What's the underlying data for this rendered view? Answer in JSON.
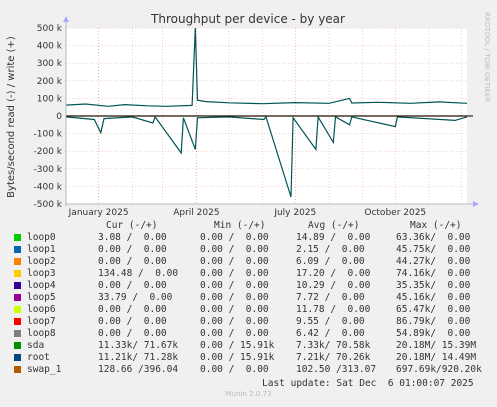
{
  "chart_data": {
    "type": "line",
    "title": "Throughput per device - by year",
    "ylabel": "Bytes/second read (-) / write (+)",
    "ylim": [
      -500000,
      500000
    ],
    "yticks": [
      -500000,
      -400000,
      -300000,
      -200000,
      -100000,
      0,
      100000,
      200000,
      300000,
      400000,
      500000
    ],
    "ytick_labels": [
      "-500 k",
      "-400 k",
      "-300 k",
      "-200 k",
      "-100 k",
      "0",
      "100 k",
      "200 k",
      "300 k",
      "400 k",
      "500 k"
    ],
    "xlim": [
      "2024-12-02",
      "2025-12-06"
    ],
    "xticks": [
      "2025-01-01",
      "2025-04-01",
      "2025-07-01",
      "2025-10-01"
    ],
    "xtick_labels": [
      "January 2025",
      "April 2025",
      "July 2025",
      "October 2025"
    ],
    "grid": true,
    "series_root_write": [
      [
        "2024-12-02",
        62000
      ],
      [
        "2024-12-20",
        68000
      ],
      [
        "2025-01-10",
        55000
      ],
      [
        "2025-01-25",
        65000
      ],
      [
        "2025-02-15",
        58000
      ],
      [
        "2025-03-05",
        55000
      ],
      [
        "2025-03-28",
        60000
      ],
      [
        "2025-03-31",
        500000
      ],
      [
        "2025-04-02",
        90000
      ],
      [
        "2025-04-10",
        82000
      ],
      [
        "2025-05-01",
        75000
      ],
      [
        "2025-06-01",
        70000
      ],
      [
        "2025-07-01",
        76000
      ],
      [
        "2025-08-01",
        72000
      ],
      [
        "2025-08-20",
        100000
      ],
      [
        "2025-08-22",
        74000
      ],
      [
        "2025-09-15",
        78000
      ],
      [
        "2025-10-15",
        72000
      ],
      [
        "2025-11-10",
        80000
      ],
      [
        "2025-12-06",
        72000
      ]
    ],
    "series_root_read": [
      [
        "2024-12-02",
        -5000
      ],
      [
        "2024-12-28",
        -20000
      ],
      [
        "2025-01-03",
        -95000
      ],
      [
        "2025-01-06",
        -15000
      ],
      [
        "2025-02-01",
        -5000
      ],
      [
        "2025-02-20",
        -40000
      ],
      [
        "2025-02-22",
        -5000
      ],
      [
        "2025-03-18",
        -210000
      ],
      [
        "2025-03-20",
        -10000
      ],
      [
        "2025-03-31",
        -190000
      ],
      [
        "2025-04-02",
        -10000
      ],
      [
        "2025-05-01",
        -5000
      ],
      [
        "2025-06-02",
        -20000
      ],
      [
        "2025-06-04",
        -5000
      ],
      [
        "2025-06-27",
        -460000
      ],
      [
        "2025-06-29",
        -10000
      ],
      [
        "2025-07-20",
        -190000
      ],
      [
        "2025-07-22",
        -5000
      ],
      [
        "2025-08-05",
        -150000
      ],
      [
        "2025-08-07",
        -5000
      ],
      [
        "2025-08-20",
        -50000
      ],
      [
        "2025-08-22",
        -5000
      ],
      [
        "2025-10-01",
        -60000
      ],
      [
        "2025-10-03",
        -5000
      ],
      [
        "2025-11-25",
        -25000
      ],
      [
        "2025-12-06",
        -5000
      ]
    ],
    "series_swap_write": [
      [
        "2024-12-02",
        400
      ],
      [
        "2025-12-06",
        400
      ]
    ],
    "series_swap_read": [
      [
        "2024-12-02",
        -800
      ],
      [
        "2025-12-06",
        -800
      ]
    ]
  },
  "colors": {
    "root": "#005555",
    "swap_1": "#b35a00",
    "grid": "#e5a0a0",
    "axis": "#000000"
  },
  "side_label": "RRDTOOL / TOBI OETIKER",
  "legend": {
    "headers": {
      "cur": "Cur (-/+)",
      "min": "Min (-/+)",
      "avg": "Avg (-/+)",
      "max": "Max (-/+)"
    },
    "rows": [
      {
        "name": "loop0",
        "color": "#00cc00",
        "cur": "3.08 /  0.00",
        "min": "0.00 /  0.00",
        "avg": "14.89 /  0.00",
        "max": "63.36k/  0.00"
      },
      {
        "name": "loop1",
        "color": "#0066b3",
        "cur": "0.00 /  0.00",
        "min": "0.00 /  0.00",
        "avg": "2.15 /  0.00",
        "max": "45.75k/  0.00"
      },
      {
        "name": "loop2",
        "color": "#ff8000",
        "cur": "0.00 /  0.00",
        "min": "0.00 /  0.00",
        "avg": "6.09 /  0.00",
        "max": "44.27k/  0.00"
      },
      {
        "name": "loop3",
        "color": "#ffcc00",
        "cur": "134.48 /  0.00",
        "min": "0.00 /  0.00",
        "avg": "17.20 /  0.00",
        "max": "74.16k/  0.00"
      },
      {
        "name": "loop4",
        "color": "#330099",
        "cur": "0.00 /  0.00",
        "min": "0.00 /  0.00",
        "avg": "10.29 /  0.00",
        "max": "35.35k/  0.00"
      },
      {
        "name": "loop5",
        "color": "#990099",
        "cur": "33.79 /  0.00",
        "min": "0.00 /  0.00",
        "avg": "7.72 /  0.00",
        "max": "45.16k/  0.00"
      },
      {
        "name": "loop6",
        "color": "#ccff00",
        "cur": "0.00 /  0.00",
        "min": "0.00 /  0.00",
        "avg": "11.78 /  0.00",
        "max": "65.47k/  0.00"
      },
      {
        "name": "loop7",
        "color": "#ff0000",
        "cur": "0.00 /  0.00",
        "min": "0.00 /  0.00",
        "avg": "9.55 /  0.00",
        "max": "86.79k/  0.00"
      },
      {
        "name": "loop8",
        "color": "#808080",
        "cur": "0.00 /  0.00",
        "min": "0.00 /  0.00",
        "avg": "6.42 /  0.00",
        "max": "54.89k/  0.00"
      },
      {
        "name": "sda",
        "color": "#008f00",
        "cur": "11.33k/ 71.67k",
        "min": "0.00 / 15.91k",
        "avg": "7.33k/ 70.58k",
        "max": "20.18M/ 15.39M"
      },
      {
        "name": "root",
        "color": "#00487d",
        "cur": "11.21k/ 71.28k",
        "min": "0.00 / 15.91k",
        "avg": "7.21k/ 70.26k",
        "max": "20.18M/ 14.49M"
      },
      {
        "name": "swap_1",
        "color": "#b35a00",
        "cur": "128.66 /396.04",
        "min": "0.00 /  0.00",
        "avg": "102.50 /313.07",
        "max": "697.69k/920.20k"
      }
    ]
  },
  "last_update": "Last update: Sat Dec  6 01:00:07 2025",
  "munin_version": "Munin 2.0.73"
}
